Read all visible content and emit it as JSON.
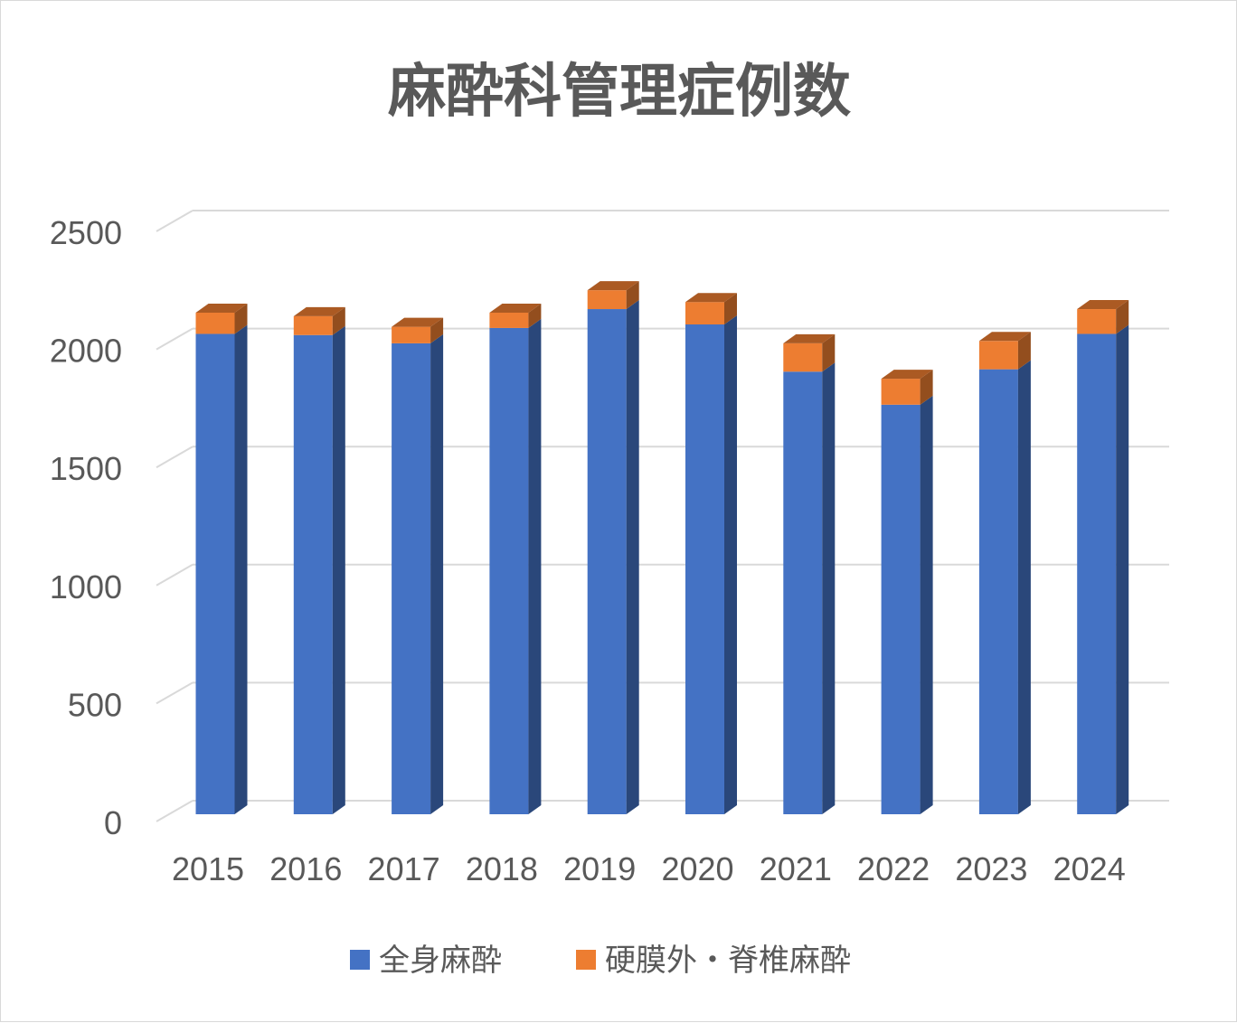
{
  "chart_data": {
    "type": "bar",
    "stacked": true,
    "three_d": true,
    "title": "麻酔科管理症例数",
    "categories": [
      "2015",
      "2016",
      "2017",
      "2018",
      "2019",
      "2020",
      "2021",
      "2022",
      "2023",
      "2024"
    ],
    "series": [
      {
        "name": "全身麻酔",
        "color": "#4472C4",
        "values": [
          2035,
          2030,
          1995,
          2060,
          2140,
          2075,
          1875,
          1735,
          1885,
          2035
        ]
      },
      {
        "name": "硬膜外・脊椎麻酔",
        "color": "#ED7D31",
        "values": [
          90,
          80,
          70,
          65,
          80,
          95,
          120,
          110,
          120,
          105
        ]
      }
    ],
    "yticks": [
      "0",
      "500",
      "1000",
      "1500",
      "2000",
      "2500"
    ],
    "ylim": [
      0,
      2500
    ],
    "grid": true,
    "legend": "bottom"
  }
}
